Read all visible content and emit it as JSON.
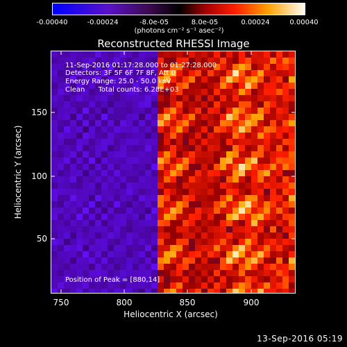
{
  "colorbar": {
    "ticks": [
      "-0.00040",
      "-0.00024",
      "-8.0e-05",
      "8.0e-05",
      "0.00024",
      "0.00040"
    ],
    "unit": "(photons cm⁻² s⁻¹ asec⁻²)"
  },
  "title": "Reconstructed RHESSI Image",
  "annotations": {
    "time_range": "11-Sep-2016 01:17:28.000 to 01:27:28.000",
    "detectors": "Detectors: 3F 5F 6F 7F 8F, Att 0",
    "energy": "Energy Range: 25.0 - 50.0 keV",
    "clean": "Clean      Total counts: 6.28E+03",
    "peak": "Position of Peak = [880,14]"
  },
  "axes": {
    "xlabel": "Heliocentric X (arcsec)",
    "ylabel": "Heliocentric Y (arcsec)",
    "xticks": [
      "750",
      "800",
      "850",
      "900"
    ],
    "yticks": [
      "50",
      "100",
      "150"
    ],
    "xlim": [
      743,
      936
    ],
    "ylim": [
      3,
      190
    ]
  },
  "footer": "13-Sep-2016 05:19"
}
